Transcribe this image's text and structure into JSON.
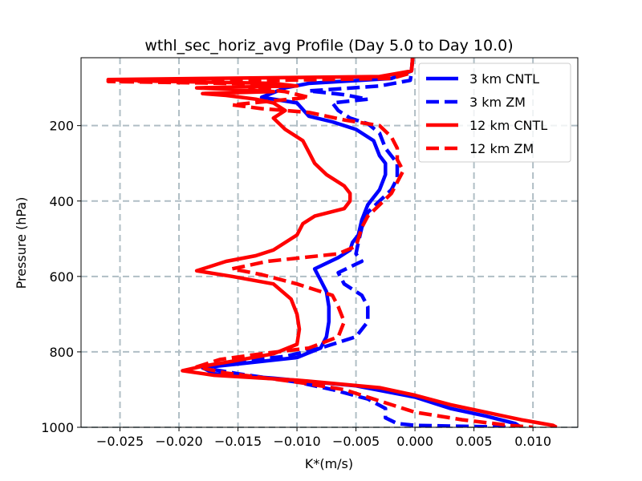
{
  "chart_data": {
    "type": "line",
    "title": "wthl_sec_horiz_avg Profile (Day 5.0 to Day 10.0)",
    "xlabel": "K*(m/s)",
    "ylabel": "Pressure (hPa)",
    "xlim": [
      -0.0283,
      0.0138
    ],
    "ylim": [
      1000,
      20
    ],
    "y_inverted": true,
    "grid": true,
    "legend_position": "top-right",
    "xticks": [
      {
        "value": -0.025,
        "label": "−0.025"
      },
      {
        "value": -0.02,
        "label": "−0.020"
      },
      {
        "value": -0.015,
        "label": "−0.015"
      },
      {
        "value": -0.01,
        "label": "−0.010"
      },
      {
        "value": -0.005,
        "label": "−0.005"
      },
      {
        "value": 0.0,
        "label": "0.000"
      },
      {
        "value": 0.005,
        "label": "0.005"
      },
      {
        "value": 0.01,
        "label": "0.010"
      }
    ],
    "yticks": [
      {
        "value": 200,
        "label": "200"
      },
      {
        "value": 400,
        "label": "400"
      },
      {
        "value": 600,
        "label": "600"
      },
      {
        "value": 800,
        "label": "800"
      },
      {
        "value": 1000,
        "label": "1000"
      }
    ],
    "series": [
      {
        "name": "3 km CNTL",
        "color": "#0000ff",
        "dash": "solid",
        "points": [
          [
            -0.0002,
            20
          ],
          [
            -0.0003,
            55
          ],
          [
            -0.002,
            75
          ],
          [
            -0.009,
            88
          ],
          [
            -0.011,
            100
          ],
          [
            -0.013,
            125
          ],
          [
            -0.01,
            140
          ],
          [
            -0.009,
            175
          ],
          [
            -0.007,
            190
          ],
          [
            -0.005,
            210
          ],
          [
            -0.0035,
            240
          ],
          [
            -0.003,
            280
          ],
          [
            -0.0025,
            300
          ],
          [
            -0.0025,
            330
          ],
          [
            -0.003,
            370
          ],
          [
            -0.004,
            410
          ],
          [
            -0.0045,
            450
          ],
          [
            -0.0048,
            490
          ],
          [
            -0.0053,
            510
          ],
          [
            -0.0055,
            530
          ],
          [
            -0.0065,
            550
          ],
          [
            -0.0085,
            580
          ],
          [
            -0.008,
            610
          ],
          [
            -0.0075,
            640
          ],
          [
            -0.0073,
            680
          ],
          [
            -0.0073,
            720
          ],
          [
            -0.0075,
            760
          ],
          [
            -0.008,
            790
          ],
          [
            -0.01,
            815
          ],
          [
            -0.015,
            832
          ],
          [
            -0.018,
            842
          ],
          [
            -0.017,
            858
          ],
          [
            -0.012,
            870
          ],
          [
            -0.005,
            890
          ],
          [
            0.0,
            920
          ],
          [
            0.003,
            950
          ],
          [
            0.006,
            970
          ],
          [
            0.0085,
            990
          ],
          [
            0.009,
            1000
          ]
        ]
      },
      {
        "name": "3 km ZM",
        "color": "#0000ff",
        "dash": "dashed",
        "points": [
          [
            -0.0002,
            20
          ],
          [
            -0.0003,
            60
          ],
          [
            -0.0004,
            80
          ],
          [
            -0.003,
            95
          ],
          [
            -0.009,
            108
          ],
          [
            -0.006,
            118
          ],
          [
            -0.004,
            130
          ],
          [
            -0.007,
            140
          ],
          [
            -0.0065,
            160
          ],
          [
            -0.0055,
            180
          ],
          [
            -0.004,
            195
          ],
          [
            -0.003,
            220
          ],
          [
            -0.0025,
            260
          ],
          [
            -0.0015,
            300
          ],
          [
            -0.0015,
            340
          ],
          [
            -0.002,
            370
          ],
          [
            -0.003,
            400
          ],
          [
            -0.004,
            430
          ],
          [
            -0.0045,
            470
          ],
          [
            -0.0048,
            510
          ],
          [
            -0.005,
            540
          ],
          [
            -0.0045,
            560
          ],
          [
            -0.0065,
            590
          ],
          [
            -0.006,
            620
          ],
          [
            -0.0045,
            650
          ],
          [
            -0.004,
            680
          ],
          [
            -0.004,
            720
          ],
          [
            -0.005,
            760
          ],
          [
            -0.008,
            790
          ],
          [
            -0.011,
            812
          ],
          [
            -0.016,
            828
          ],
          [
            -0.018,
            842
          ],
          [
            -0.015,
            858
          ],
          [
            -0.01,
            880
          ],
          [
            -0.007,
            900
          ],
          [
            -0.004,
            925
          ],
          [
            -0.0025,
            950
          ],
          [
            -0.0025,
            975
          ],
          [
            -0.0015,
            990
          ],
          [
            0.0,
            995
          ],
          [
            0.0085,
            1000
          ]
        ]
      },
      {
        "name": "12 km CNTL",
        "color": "#ff0000",
        "dash": "solid",
        "points": [
          [
            -0.0002,
            20
          ],
          [
            -0.0003,
            55
          ],
          [
            -0.003,
            70
          ],
          [
            -0.018,
            75
          ],
          [
            -0.026,
            78
          ],
          [
            -0.022,
            82
          ],
          [
            -0.012,
            88
          ],
          [
            -0.01,
            95
          ],
          [
            -0.0185,
            100
          ],
          [
            -0.012,
            110
          ],
          [
            -0.018,
            115
          ],
          [
            -0.016,
            120
          ],
          [
            -0.0135,
            130
          ],
          [
            -0.012,
            140
          ],
          [
            -0.011,
            160
          ],
          [
            -0.012,
            180
          ],
          [
            -0.011,
            210
          ],
          [
            -0.0095,
            240
          ],
          [
            -0.009,
            270
          ],
          [
            -0.0085,
            300
          ],
          [
            -0.0075,
            330
          ],
          [
            -0.006,
            360
          ],
          [
            -0.0055,
            380
          ],
          [
            -0.0055,
            400
          ],
          [
            -0.006,
            420
          ],
          [
            -0.0085,
            440
          ],
          [
            -0.0095,
            460
          ],
          [
            -0.01,
            490
          ],
          [
            -0.011,
            510
          ],
          [
            -0.012,
            530
          ],
          [
            -0.0135,
            545
          ],
          [
            -0.016,
            560
          ],
          [
            -0.0185,
            585
          ],
          [
            -0.0155,
            600
          ],
          [
            -0.012,
            620
          ],
          [
            -0.0105,
            660
          ],
          [
            -0.01,
            700
          ],
          [
            -0.0098,
            740
          ],
          [
            -0.01,
            780
          ],
          [
            -0.012,
            805
          ],
          [
            -0.0155,
            825
          ],
          [
            -0.018,
            838
          ],
          [
            -0.0197,
            850
          ],
          [
            -0.017,
            862
          ],
          [
            -0.01,
            875
          ],
          [
            -0.003,
            895
          ],
          [
            0.0,
            915
          ],
          [
            0.003,
            940
          ],
          [
            0.006,
            960
          ],
          [
            0.009,
            980
          ],
          [
            0.0117,
            995
          ],
          [
            0.012,
            1000
          ]
        ]
      },
      {
        "name": "12 km ZM",
        "color": "#ff0000",
        "dash": "dashed",
        "points": [
          [
            -0.0002,
            20
          ],
          [
            -0.0003,
            60
          ],
          [
            -0.002,
            75
          ],
          [
            -0.012,
            80
          ],
          [
            -0.026,
            83
          ],
          [
            -0.012,
            90
          ],
          [
            -0.014,
            100
          ],
          [
            -0.011,
            110
          ],
          [
            -0.009,
            125
          ],
          [
            -0.0155,
            145
          ],
          [
            -0.013,
            155
          ],
          [
            -0.009,
            165
          ],
          [
            -0.006,
            185
          ],
          [
            -0.003,
            200
          ],
          [
            -0.002,
            230
          ],
          [
            -0.0015,
            260
          ],
          [
            -0.0015,
            290
          ],
          [
            -0.001,
            320
          ],
          [
            -0.0015,
            350
          ],
          [
            -0.002,
            380
          ],
          [
            -0.003,
            410
          ],
          [
            -0.004,
            440
          ],
          [
            -0.0045,
            470
          ],
          [
            -0.0048,
            500
          ],
          [
            -0.005,
            520
          ],
          [
            -0.0065,
            540
          ],
          [
            -0.0125,
            560
          ],
          [
            -0.0155,
            580
          ],
          [
            -0.013,
            595
          ],
          [
            -0.01,
            620
          ],
          [
            -0.007,
            650
          ],
          [
            -0.0065,
            680
          ],
          [
            -0.006,
            720
          ],
          [
            -0.0065,
            760
          ],
          [
            -0.009,
            790
          ],
          [
            -0.013,
            805
          ],
          [
            -0.0165,
            820
          ],
          [
            -0.0185,
            840
          ],
          [
            -0.016,
            856
          ],
          [
            -0.01,
            880
          ],
          [
            -0.006,
            900
          ],
          [
            -0.003,
            930
          ],
          [
            0.0,
            960
          ],
          [
            0.004,
            980
          ],
          [
            0.008,
            995
          ],
          [
            0.01,
            1000
          ]
        ]
      }
    ]
  }
}
